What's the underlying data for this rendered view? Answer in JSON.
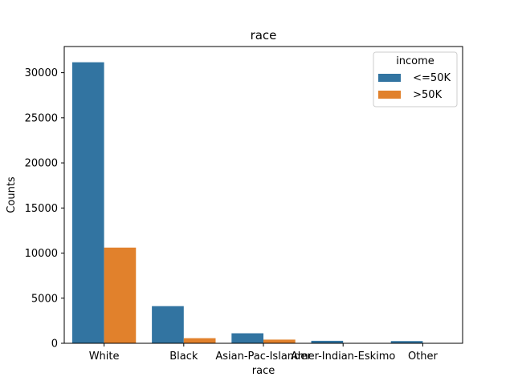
{
  "chart_data": {
    "type": "bar",
    "title": "race",
    "xlabel": "race",
    "ylabel": "Counts",
    "categories": [
      " White",
      " Black",
      " Asian-Pac-Islander",
      " Amer-Indian-Eskimo",
      " Other"
    ],
    "series": [
      {
        "name": " <=50K",
        "color": "#3274a1",
        "values": [
          31155,
          4119,
          1110,
          275,
          246
        ]
      },
      {
        "name": " >50K",
        "color": "#e1812c",
        "values": [
          10607,
          566,
          409,
          36,
          25
        ]
      }
    ],
    "ylim": [
      0,
      32900
    ],
    "yticks": [
      0,
      5000,
      10000,
      15000,
      20000,
      25000,
      30000
    ],
    "legend": {
      "title": "income",
      "position": "top-right"
    },
    "grid": false
  }
}
